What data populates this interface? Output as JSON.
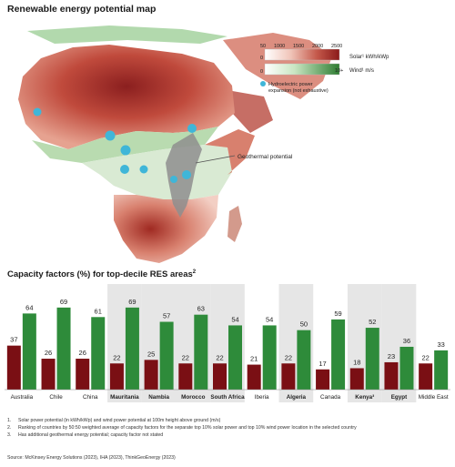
{
  "header": {
    "title": "Renewable energy potential map"
  },
  "map": {
    "legend": {
      "solar": {
        "ticks": [
          "50",
          "1000",
          "1500",
          "2000",
          "2500"
        ],
        "zero": "0",
        "label": "Solar¹ kWh/kWp",
        "color_low": "#ffffff",
        "color_high": "#8b1a1a"
      },
      "wind": {
        "zero": "0",
        "max": "10+",
        "label": "Wind¹ m/s",
        "color_low": "#ffffff",
        "color_high": "#2e7d32"
      },
      "hydro": {
        "label_line1": "Hydroelectric power",
        "label_line2": "expansion (not exhaustive)",
        "color": "#3fb6d8"
      }
    },
    "geothermal_label": "Geothermal potential"
  },
  "capacity": {
    "title": "Capacity factors (%) for top-decile RES areas",
    "title_sup": "2"
  },
  "chart_data": {
    "type": "bar",
    "title": "Capacity factors (%) for top-decile RES areas²",
    "categories": [
      "Australia",
      "Chile",
      "China",
      "Mauritania",
      "Nambia",
      "Morocco",
      "South Africa",
      "Iberia",
      "Algeria",
      "Canada",
      "Kenya³",
      "Egypt",
      "Middle East"
    ],
    "highlighted": [
      false,
      false,
      false,
      true,
      true,
      true,
      true,
      false,
      true,
      false,
      true,
      true,
      false
    ],
    "bold": [
      false,
      false,
      false,
      true,
      true,
      true,
      true,
      false,
      true,
      false,
      true,
      true,
      false
    ],
    "series": [
      {
        "name": "Solar",
        "color": "#7a0f14",
        "values": [
          37,
          26,
          26,
          22,
          25,
          22,
          22,
          21,
          22,
          17,
          18,
          23,
          22
        ]
      },
      {
        "name": "Wind",
        "color": "#2e8b3a",
        "values": [
          64,
          69,
          61,
          69,
          57,
          63,
          54,
          54,
          50,
          59,
          52,
          36,
          33
        ]
      }
    ],
    "ylim": [
      0,
      75
    ]
  },
  "footnotes": [
    {
      "num": "1.",
      "text": "Solar power potential (in kWh/kWp) and wind power potential at 100m height above ground (m/s)"
    },
    {
      "num": "2.",
      "text": "Ranking of countries by 50:50 weighted average of capacity factors for the separate top 10% solar power and top 10% wind power location in the selected country"
    },
    {
      "num": "3.",
      "text": "Has additional geothermal energy potential; capacity factor not stated"
    }
  ],
  "source": "Source: McKinsey Energy Solutions (2023), IHA (2023), ThinkGeoEnergy (2023)"
}
